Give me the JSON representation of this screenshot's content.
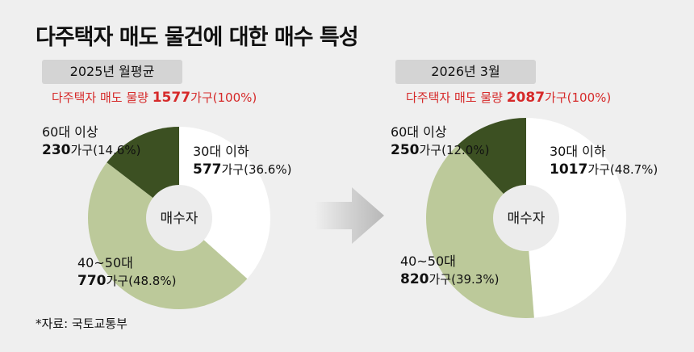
{
  "title": "다주택자 매도 물건에 대한 매수 특성",
  "source": "*자료: 국토교통부",
  "center_label": "매수자",
  "unit": "가구",
  "colors": {
    "under30": "#ffffff",
    "age40_50": "#bcc99a",
    "over60": "#3c5022",
    "center": "#ececec"
  },
  "chart_data": [
    {
      "type": "pie",
      "period": "2025년 월평균",
      "total_label": "다주택자 매도 물량",
      "total_value": "1577",
      "total_unit": "가구(100%)",
      "slices": [
        {
          "key": "under30",
          "label": "30대 이하",
          "value": 577,
          "percent": 36.6,
          "value_text": "577",
          "pct_text": "가구(36.6%)"
        },
        {
          "key": "age40_50",
          "label": "40~50대",
          "value": 770,
          "percent": 48.8,
          "value_text": "770",
          "pct_text": "가구(48.8%)"
        },
        {
          "key": "over60",
          "label": "60대 이상",
          "value": 230,
          "percent": 14.6,
          "value_text": "230",
          "pct_text": "가구(14.6%)"
        }
      ]
    },
    {
      "type": "pie",
      "period": "2026년 3월",
      "total_label": "다주택자 매도 물량",
      "total_value": "2087",
      "total_unit": "가구(100%)",
      "slices": [
        {
          "key": "under30",
          "label": "30대 이하",
          "value": 1017,
          "percent": 48.7,
          "value_text": "1017",
          "pct_text": "가구(48.7%)"
        },
        {
          "key": "age40_50",
          "label": "40~50대",
          "value": 820,
          "percent": 39.3,
          "value_text": "820",
          "pct_text": "가구(39.3%)"
        },
        {
          "key": "over60",
          "label": "60대 이상",
          "value": 250,
          "percent": 12.0,
          "value_text": "250",
          "pct_text": "가구(12.0%)"
        }
      ]
    }
  ]
}
